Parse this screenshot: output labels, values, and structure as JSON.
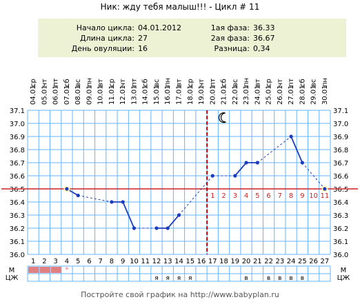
{
  "header": {
    "title": "Ник: жду тебя малыш!!! - Цикл # 11"
  },
  "info": {
    "start_label": "Начало цикла:",
    "start_value": "04.01.2012",
    "length_label": "Длина цикла:",
    "length_value": "27",
    "ovulation_label": "День овуляции:",
    "ovulation_value": "16",
    "phase1_label": "1ая фаза:",
    "phase1_value": "36.33",
    "phase2_label": "2ая фаза:",
    "phase2_value": "36.67",
    "diff_label": "Разница:",
    "diff_value": "0,34"
  },
  "chart_data": {
    "type": "line",
    "days": [
      1,
      2,
      3,
      4,
      5,
      6,
      7,
      8,
      9,
      10,
      11,
      12,
      13,
      14,
      15,
      16,
      17,
      18,
      19,
      20,
      21,
      22,
      23,
      24,
      25,
      26,
      27
    ],
    "weekdays": [
      "ср",
      "чт",
      "пт",
      "сб",
      "вс",
      "пн",
      "вт",
      "ср",
      "чт",
      "пт",
      "сб",
      "вс",
      "пн",
      "вт",
      "ср",
      "чт",
      "пт",
      "сб",
      "вс",
      "пн",
      "вт",
      "ср",
      "чт",
      "пт",
      "сб",
      "вс",
      "пн"
    ],
    "dates": [
      "04.01",
      "05.01",
      "06.01",
      "07.01",
      "08.01",
      "09.01",
      "10.01",
      "11.01",
      "12.01",
      "13.01",
      "14.01",
      "15.01",
      "16.01",
      "17.01",
      "18.01",
      "19.01",
      "20.01",
      "21.01",
      "22.01",
      "23.01",
      "24.01",
      "25.01",
      "26.01",
      "27.01",
      "28.01",
      "29.01",
      "30.01"
    ],
    "temperatures": [
      null,
      null,
      null,
      36.5,
      36.45,
      null,
      null,
      36.4,
      36.4,
      36.2,
      null,
      36.2,
      36.2,
      36.3,
      null,
      null,
      36.6,
      null,
      36.6,
      36.7,
      36.7,
      null,
      null,
      36.9,
      36.7,
      null,
      36.5
    ],
    "post_ovulation_numbers": [
      "1",
      "2",
      "3",
      "4",
      "5",
      "6",
      "7",
      "8",
      "9",
      "10",
      "11"
    ],
    "ylim": [
      36.0,
      37.1
    ],
    "y_ticks": [
      "37.1",
      "37.0",
      "36.9",
      "36.8",
      "36.7",
      "36.6",
      "36.5",
      "36.4",
      "36.3",
      "36.2",
      "36.1",
      "36.0"
    ],
    "coverline": 36.5,
    "ovulation_day": 16,
    "row_labels": {
      "m": "М",
      "czh": "ЦЖ"
    },
    "czh_marks": {
      "12": "я",
      "13": "я",
      "14": "я",
      "15": "я",
      "20": "в",
      "22": "в",
      "23": "в",
      "24": "в",
      "25": "в"
    },
    "m_days": [
      1,
      2,
      3
    ],
    "m_star_day": 4,
    "m_star": "*",
    "moon_day": 18,
    "colors": {
      "grid": "#66b3ff",
      "line": "#1a3dbf",
      "coverline": "#cc2222",
      "ovulation": "#cc0000",
      "menstruation": "#e08080",
      "bg_band": "#eef2d4"
    }
  },
  "footer": {
    "text": "Постройте свой график на http://www.babyplan.ru"
  }
}
